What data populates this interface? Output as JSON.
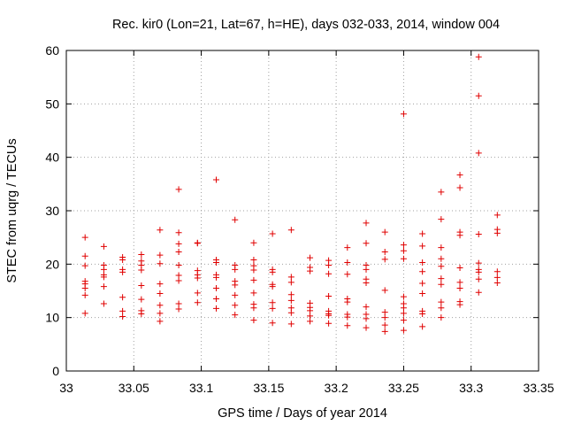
{
  "chart_data": {
    "type": "scatter",
    "title": "Rec. kir0 (Lon=21, Lat=67, h=HE), days 032-033, 2014, window 004",
    "xlabel": "GPS time / Days of year 2014",
    "ylabel": "STEC from uqrg / TECUs",
    "xlim": [
      33,
      33.35
    ],
    "ylim": [
      0,
      60
    ],
    "xticks": [
      33,
      33.05,
      33.1,
      33.15,
      33.2,
      33.25,
      33.3,
      33.35
    ],
    "xtick_labels": [
      "33",
      "33.05",
      "33.1",
      "33.15",
      "33.2",
      "33.25",
      "33.3",
      "33.35"
    ],
    "yticks": [
      0,
      10,
      20,
      30,
      40,
      50,
      60
    ],
    "ytick_labels": [
      "0",
      "10",
      "20",
      "30",
      "40",
      "50",
      "60"
    ],
    "grid": true,
    "marker": "+",
    "colors": {
      "points": "#e00000",
      "grid": "#a0a0a0",
      "axes": "#000000"
    },
    "series": [
      {
        "name": "STEC",
        "points": [
          [
            33.0139,
            25.0
          ],
          [
            33.0139,
            21.5
          ],
          [
            33.0139,
            19.7
          ],
          [
            33.0139,
            16.8
          ],
          [
            33.0139,
            16.3
          ],
          [
            33.0139,
            15.5
          ],
          [
            33.0139,
            14.2
          ],
          [
            33.0139,
            10.8
          ],
          [
            33.0278,
            23.3
          ],
          [
            33.0278,
            19.8
          ],
          [
            33.0278,
            19.0
          ],
          [
            33.0278,
            18.0
          ],
          [
            33.0278,
            17.6
          ],
          [
            33.0278,
            15.8
          ],
          [
            33.0278,
            12.6
          ],
          [
            33.0417,
            21.3
          ],
          [
            33.0417,
            20.8
          ],
          [
            33.0417,
            19.0
          ],
          [
            33.0417,
            18.5
          ],
          [
            33.0417,
            13.8
          ],
          [
            33.0417,
            11.2
          ],
          [
            33.0417,
            10.2
          ],
          [
            33.0556,
            21.8
          ],
          [
            33.0556,
            20.6
          ],
          [
            33.0556,
            19.8
          ],
          [
            33.0556,
            18.9
          ],
          [
            33.0556,
            16.0
          ],
          [
            33.0556,
            13.4
          ],
          [
            33.0556,
            11.3
          ],
          [
            33.0556,
            10.7
          ],
          [
            33.0694,
            26.4
          ],
          [
            33.0694,
            21.7
          ],
          [
            33.0694,
            20.1
          ],
          [
            33.0694,
            16.3
          ],
          [
            33.0694,
            14.5
          ],
          [
            33.0694,
            12.3
          ],
          [
            33.0694,
            10.8
          ],
          [
            33.0694,
            9.3
          ],
          [
            33.0833,
            34.0
          ],
          [
            33.0833,
            25.9
          ],
          [
            33.0833,
            23.8
          ],
          [
            33.0833,
            22.3
          ],
          [
            33.0833,
            19.8
          ],
          [
            33.0833,
            17.9
          ],
          [
            33.0833,
            16.9
          ],
          [
            33.0833,
            12.6
          ],
          [
            33.0833,
            11.6
          ],
          [
            33.0972,
            24.0
          ],
          [
            33.0972,
            23.9
          ],
          [
            33.0972,
            18.8
          ],
          [
            33.0972,
            18.0
          ],
          [
            33.0972,
            17.4
          ],
          [
            33.0972,
            14.6
          ],
          [
            33.0972,
            12.8
          ],
          [
            33.1111,
            35.8
          ],
          [
            33.1111,
            20.8
          ],
          [
            33.1111,
            20.3
          ],
          [
            33.1111,
            18.0
          ],
          [
            33.1111,
            17.5
          ],
          [
            33.1111,
            15.5
          ],
          [
            33.1111,
            13.5
          ],
          [
            33.1111,
            11.7
          ],
          [
            33.125,
            28.3
          ],
          [
            33.125,
            19.8
          ],
          [
            33.125,
            19.0
          ],
          [
            33.125,
            16.8
          ],
          [
            33.125,
            16.1
          ],
          [
            33.125,
            14.2
          ],
          [
            33.125,
            12.3
          ],
          [
            33.125,
            10.5
          ],
          [
            33.1389,
            24.0
          ],
          [
            33.1389,
            20.8
          ],
          [
            33.1389,
            19.7
          ],
          [
            33.1389,
            18.9
          ],
          [
            33.1389,
            17.0
          ],
          [
            33.1389,
            14.6
          ],
          [
            33.1389,
            12.5
          ],
          [
            33.1389,
            11.8
          ],
          [
            33.1389,
            9.5
          ],
          [
            33.1528,
            25.7
          ],
          [
            33.1528,
            19.0
          ],
          [
            33.1528,
            18.5
          ],
          [
            33.1528,
            16.2
          ],
          [
            33.1528,
            15.8
          ],
          [
            33.1528,
            12.8
          ],
          [
            33.1528,
            11.7
          ],
          [
            33.1528,
            9.0
          ],
          [
            33.1667,
            26.4
          ],
          [
            33.1667,
            17.6
          ],
          [
            33.1667,
            16.6
          ],
          [
            33.1667,
            14.3
          ],
          [
            33.1667,
            13.2
          ],
          [
            33.1667,
            11.8
          ],
          [
            33.1667,
            10.9
          ],
          [
            33.1667,
            8.8
          ],
          [
            33.1806,
            21.2
          ],
          [
            33.1806,
            19.4
          ],
          [
            33.1806,
            18.7
          ],
          [
            33.1806,
            12.7
          ],
          [
            33.1806,
            11.9
          ],
          [
            33.1806,
            11.3
          ],
          [
            33.1806,
            10.3
          ],
          [
            33.1806,
            9.3
          ],
          [
            33.1944,
            20.7
          ],
          [
            33.1944,
            19.8
          ],
          [
            33.1944,
            18.2
          ],
          [
            33.1944,
            14.0
          ],
          [
            33.1944,
            11.2
          ],
          [
            33.1944,
            10.7
          ],
          [
            33.1944,
            10.4
          ],
          [
            33.1944,
            8.9
          ],
          [
            33.2083,
            23.1
          ],
          [
            33.2083,
            20.3
          ],
          [
            33.2083,
            18.1
          ],
          [
            33.2083,
            13.5
          ],
          [
            33.2083,
            12.9
          ],
          [
            33.2083,
            10.6
          ],
          [
            33.2083,
            10.1
          ],
          [
            33.2083,
            8.5
          ],
          [
            33.2222,
            27.7
          ],
          [
            33.2222,
            23.9
          ],
          [
            33.2222,
            19.8
          ],
          [
            33.2222,
            19.0
          ],
          [
            33.2222,
            17.2
          ],
          [
            33.2222,
            16.5
          ],
          [
            33.2222,
            12.0
          ],
          [
            33.2222,
            10.6
          ],
          [
            33.2222,
            9.8
          ],
          [
            33.2222,
            8.1
          ],
          [
            33.2361,
            26.0
          ],
          [
            33.2361,
            22.3
          ],
          [
            33.2361,
            20.9
          ],
          [
            33.2361,
            15.1
          ],
          [
            33.2361,
            11.0
          ],
          [
            33.2361,
            10.0
          ],
          [
            33.2361,
            8.6
          ],
          [
            33.2361,
            7.4
          ],
          [
            33.25,
            48.1
          ],
          [
            33.25,
            23.6
          ],
          [
            33.25,
            22.5
          ],
          [
            33.25,
            21.0
          ],
          [
            33.25,
            13.9
          ],
          [
            33.25,
            12.6
          ],
          [
            33.25,
            11.8
          ],
          [
            33.25,
            10.8
          ],
          [
            33.25,
            9.5
          ],
          [
            33.25,
            7.6
          ],
          [
            33.2639,
            25.7
          ],
          [
            33.2639,
            23.4
          ],
          [
            33.2639,
            20.3
          ],
          [
            33.2639,
            18.6
          ],
          [
            33.2639,
            16.4
          ],
          [
            33.2639,
            14.5
          ],
          [
            33.2639,
            11.2
          ],
          [
            33.2639,
            10.7
          ],
          [
            33.2639,
            8.3
          ],
          [
            33.2778,
            33.5
          ],
          [
            33.2778,
            28.4
          ],
          [
            33.2778,
            23.1
          ],
          [
            33.2778,
            21.0
          ],
          [
            33.2778,
            19.6
          ],
          [
            33.2778,
            17.3
          ],
          [
            33.2778,
            16.2
          ],
          [
            33.2778,
            12.9
          ],
          [
            33.2778,
            11.8
          ],
          [
            33.2778,
            10.0
          ],
          [
            33.2917,
            36.7
          ],
          [
            33.2917,
            34.3
          ],
          [
            33.2917,
            26.0
          ],
          [
            33.2917,
            25.4
          ],
          [
            33.2917,
            19.3
          ],
          [
            33.2917,
            16.6
          ],
          [
            33.2917,
            15.5
          ],
          [
            33.2917,
            13.0
          ],
          [
            33.2917,
            12.4
          ],
          [
            33.3056,
            58.8
          ],
          [
            33.3056,
            51.5
          ],
          [
            33.3056,
            40.8
          ],
          [
            33.3056,
            25.6
          ],
          [
            33.3056,
            20.2
          ],
          [
            33.3056,
            19.0
          ],
          [
            33.3056,
            18.5
          ],
          [
            33.3056,
            17.2
          ],
          [
            33.3056,
            14.7
          ],
          [
            33.3194,
            29.2
          ],
          [
            33.3194,
            26.5
          ],
          [
            33.3194,
            25.8
          ],
          [
            33.3194,
            18.6
          ],
          [
            33.3194,
            17.5
          ],
          [
            33.3194,
            16.5
          ]
        ]
      }
    ]
  }
}
